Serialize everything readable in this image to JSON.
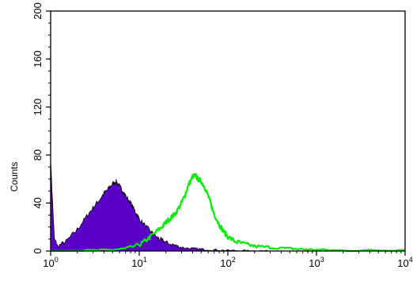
{
  "chart_data": {
    "type": "area",
    "title": "",
    "xlabel": "",
    "ylabel": "Counts",
    "x_scale": "log",
    "xlim": [
      1,
      10000
    ],
    "ylim": [
      0,
      200
    ],
    "grid": false,
    "y_ticks": [
      {
        "value": 0,
        "label": "0"
      },
      {
        "value": 40,
        "label": "40"
      },
      {
        "value": 80,
        "label": "80"
      },
      {
        "value": 120,
        "label": "120"
      },
      {
        "value": 160,
        "label": "160"
      },
      {
        "value": 200,
        "label": "200"
      }
    ],
    "x_ticks": [
      {
        "value": 1,
        "base": "10",
        "exp": "0"
      },
      {
        "value": 10,
        "base": "10",
        "exp": "1"
      },
      {
        "value": 100,
        "base": "10",
        "exp": "2"
      },
      {
        "value": 1000,
        "base": "10",
        "exp": "3"
      },
      {
        "value": 10000,
        "base": "10",
        "exp": "4"
      }
    ],
    "series": [
      {
        "style": "filled",
        "color": "#5b00c8",
        "x": [
          1.0,
          1.1,
          1.2,
          1.5,
          2.0,
          2.5,
          3.0,
          3.5,
          4.0,
          4.5,
          5.0,
          5.5,
          6.0,
          6.5,
          7.0,
          8.0,
          9.0,
          10.0,
          12.0,
          14.0,
          16.0,
          18.0,
          20.0,
          25.0,
          30.0,
          40.0,
          50.0,
          70.0,
          100.0,
          150.0,
          200.0,
          300.0
        ],
        "y": [
          75,
          10,
          4,
          8,
          18,
          28,
          36,
          42,
          48,
          52,
          56,
          58,
          54,
          50,
          46,
          40,
          33,
          27,
          20,
          15,
          11,
          9,
          7,
          5,
          3,
          2,
          1.5,
          1,
          0.5,
          0.3,
          0.2,
          0
        ]
      },
      {
        "style": "line",
        "color": "#00ee00",
        "x": [
          1.0,
          3.0,
          5.0,
          7.0,
          10.0,
          12.0,
          15.0,
          18.0,
          20.0,
          23.0,
          26.0,
          30.0,
          33.0,
          36.0,
          40.0,
          43.0,
          46.0,
          50.0,
          55.0,
          60.0,
          65.0,
          70.0,
          80.0,
          90.0,
          100.0,
          120.0,
          150.0,
          200.0,
          300.0,
          500.0,
          700.0,
          1000.0,
          2000.0,
          5000.0,
          10000.0
        ],
        "y": [
          0,
          0.5,
          1,
          2,
          5,
          9,
          15,
          20,
          24,
          28,
          32,
          40,
          47,
          55,
          62,
          63,
          60,
          58,
          53,
          46,
          38,
          31,
          22,
          16,
          12,
          8,
          6,
          4,
          3,
          2,
          1.5,
          1,
          0.5,
          0.5,
          1
        ]
      }
    ]
  }
}
